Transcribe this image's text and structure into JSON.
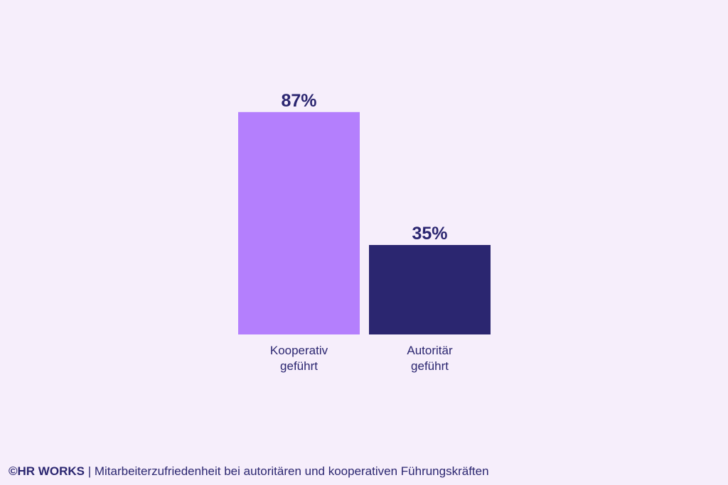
{
  "colors": {
    "background": "#F6EEFB",
    "text": "#2B2670"
  },
  "chart_data": {
    "type": "bar",
    "categories": [
      [
        "Kooperativ",
        "geführt"
      ],
      [
        "Autoritär",
        "geführt"
      ]
    ],
    "values": [
      87,
      35
    ],
    "value_labels": [
      "87%",
      "35%"
    ],
    "bar_colors": [
      "#B47FFD",
      "#2B2670"
    ],
    "ylim": [
      0,
      100
    ],
    "grid": false,
    "legend": "none"
  },
  "caption": {
    "brand": "©HR WORKS",
    "separator": " | ",
    "text": "Mitarbeiterzufriedenheit bei autoritären und kooperativen Führungskräften"
  }
}
